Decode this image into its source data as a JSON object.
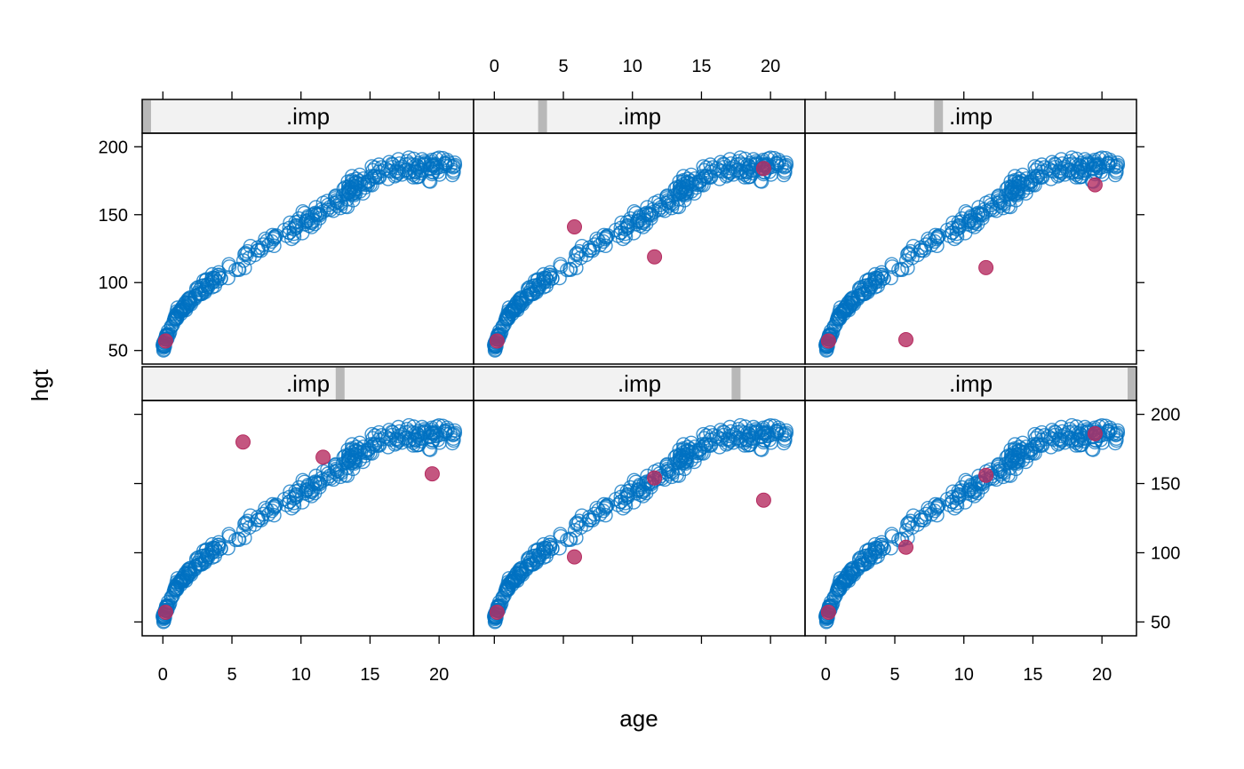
{
  "chart_data": {
    "type": "scatter",
    "layout": "2x3 trellis",
    "xlabel": "age",
    "ylabel": "hgt",
    "xlim": [
      -1.5,
      22.5
    ],
    "ylim": [
      40,
      210
    ],
    "x_ticks": [
      0,
      5,
      10,
      15,
      20
    ],
    "y_ticks": [
      50,
      100,
      150,
      200
    ],
    "strip_label": ".imp",
    "colors": {
      "observed": "#0072c1",
      "imputed": "#b52c60",
      "strip_bg": "#f2f2f2",
      "strip_indicator": "#b8b8b8"
    },
    "observed_trend": {
      "note_points": [
        [
          0,
          52
        ],
        [
          0.5,
          66
        ],
        [
          1,
          76
        ],
        [
          2,
          87
        ],
        [
          3,
          96
        ],
        [
          4,
          104
        ],
        [
          5,
          112
        ],
        [
          6,
          119
        ],
        [
          7,
          126
        ],
        [
          8,
          132
        ],
        [
          9,
          138
        ],
        [
          10,
          143
        ],
        [
          11,
          149
        ],
        [
          12,
          155
        ],
        [
          13,
          163
        ],
        [
          14,
          171
        ],
        [
          15,
          177
        ],
        [
          16,
          181
        ],
        [
          17,
          183
        ],
        [
          18,
          184
        ],
        [
          19,
          185
        ],
        [
          20,
          186
        ],
        [
          21,
          186
        ]
      ],
      "age_range": [
        0,
        21
      ]
    },
    "panels": [
      {
        "name": "panel-imp-0",
        "strip_label": ".imp",
        "strip_level": 0,
        "imputed": [
          {
            "age": 0.2,
            "hgt": 57
          }
        ]
      },
      {
        "name": "panel-imp-1",
        "strip_label": ".imp",
        "strip_level": 1,
        "imputed": [
          {
            "age": 0.2,
            "hgt": 57
          },
          {
            "age": 5.8,
            "hgt": 141
          },
          {
            "age": 11.6,
            "hgt": 119
          },
          {
            "age": 19.5,
            "hgt": 184
          }
        ]
      },
      {
        "name": "panel-imp-2",
        "strip_label": ".imp",
        "strip_level": 2,
        "imputed": [
          {
            "age": 0.2,
            "hgt": 57
          },
          {
            "age": 5.8,
            "hgt": 58
          },
          {
            "age": 11.6,
            "hgt": 111
          },
          {
            "age": 19.5,
            "hgt": 172
          }
        ]
      },
      {
        "name": "panel-imp-3",
        "strip_label": ".imp",
        "strip_level": 3,
        "imputed": [
          {
            "age": 0.2,
            "hgt": 57
          },
          {
            "age": 5.8,
            "hgt": 180
          },
          {
            "age": 11.6,
            "hgt": 169
          },
          {
            "age": 19.5,
            "hgt": 157
          }
        ]
      },
      {
        "name": "panel-imp-4",
        "strip_label": ".imp",
        "strip_level": 4,
        "imputed": [
          {
            "age": 0.2,
            "hgt": 57
          },
          {
            "age": 5.8,
            "hgt": 97
          },
          {
            "age": 11.6,
            "hgt": 154
          },
          {
            "age": 19.5,
            "hgt": 138
          }
        ]
      },
      {
        "name": "panel-imp-5",
        "strip_label": ".imp",
        "strip_level": 5,
        "imputed": [
          {
            "age": 0.2,
            "hgt": 57
          },
          {
            "age": 5.8,
            "hgt": 104
          },
          {
            "age": 11.6,
            "hgt": 156
          },
          {
            "age": 19.5,
            "hgt": 186
          }
        ]
      }
    ]
  }
}
